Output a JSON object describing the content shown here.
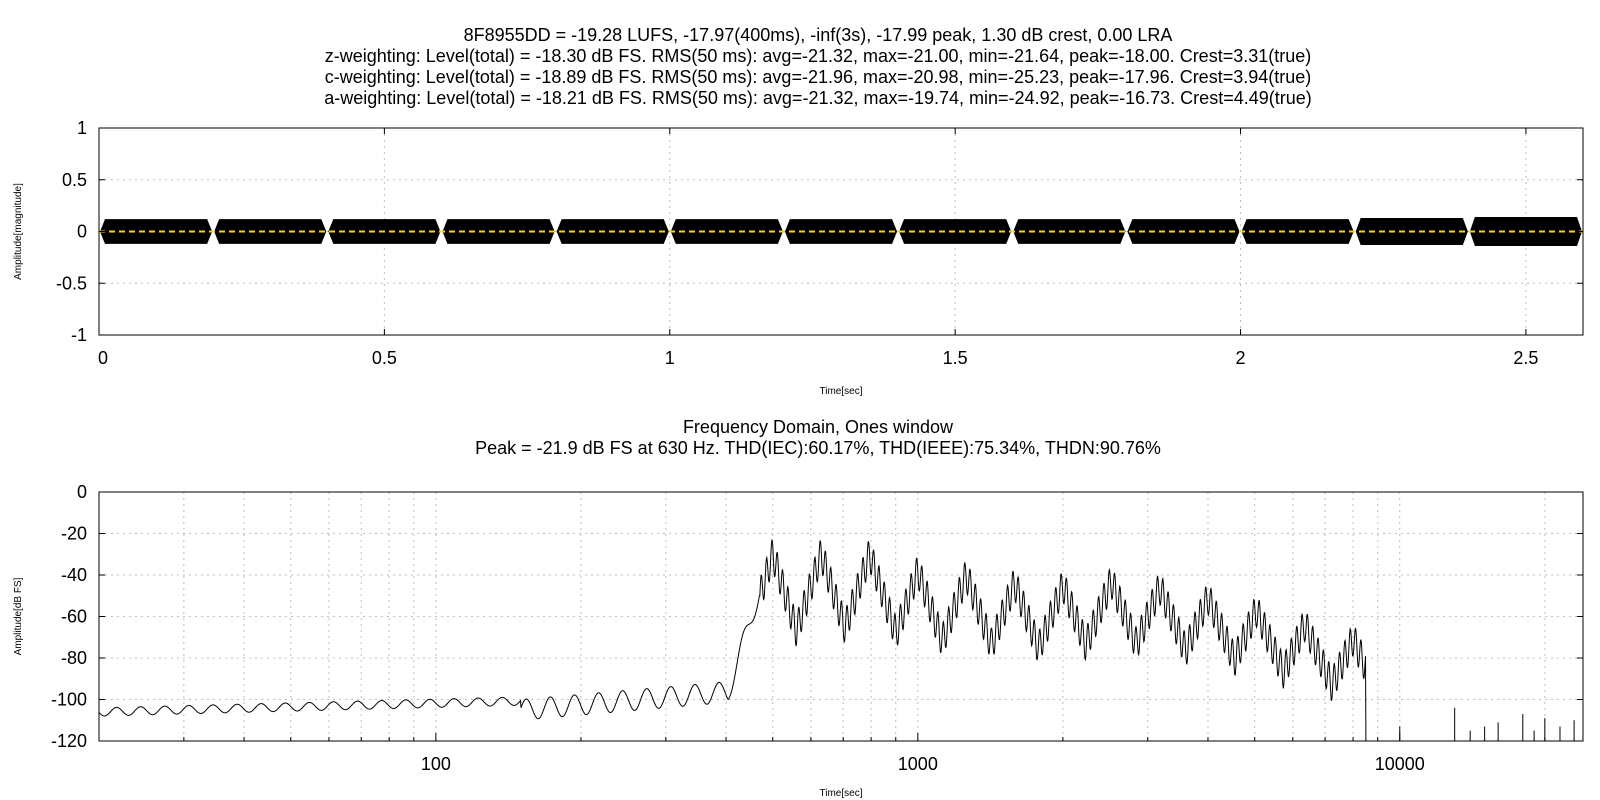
{
  "header": {
    "line1": "8F8955DD = -19.28 LUFS, -17.97(400ms), -inf(3s), -17.99 peak, 1.30 dB crest, 0.00 LRA",
    "line2": "z-weighting: Level(total) = -18.30 dB FS. RMS(50 ms): avg=-21.32, max=-21.00, min=-21.64, peak=-18.00. Crest=3.31(true)",
    "line3": "c-weighting: Level(total) = -18.89 dB FS. RMS(50 ms): avg=-21.96, max=-20.98, min=-25.23, peak=-17.96. Crest=3.94(true)",
    "line4": "a-weighting: Level(total) = -18.21 dB FS. RMS(50 ms): avg=-21.32, max=-19.74, min=-24.92, peak=-16.73. Crest=4.49(true)"
  },
  "chart_data": [
    {
      "type": "line",
      "ylabel": "Amplitude[magnitude]",
      "xlabel": "Time[sec]",
      "xlim": [
        0,
        2.6
      ],
      "ylim": [
        -1,
        1
      ],
      "xticks": [
        "0",
        "0.5",
        "1",
        "1.5",
        "2",
        "2.5"
      ],
      "xtick_values": [
        0,
        0.5,
        1,
        1.5,
        2,
        2.5
      ],
      "yticks": [
        "1",
        "0.5",
        "0",
        "-0.5",
        "-1"
      ],
      "ytick_values": [
        1,
        0.5,
        0,
        -0.5,
        -1
      ],
      "grid": true,
      "segment_duration": 0.2,
      "segment_starts": [
        0,
        0.2,
        0.4,
        0.6,
        0.8,
        1.0,
        1.2,
        1.4,
        1.6,
        1.8,
        2.0,
        2.2,
        2.4
      ],
      "segment_amplitudes": [
        0.12,
        0.12,
        0.12,
        0.12,
        0.12,
        0.12,
        0.12,
        0.12,
        0.12,
        0.12,
        0.12,
        0.13,
        0.14
      ],
      "zero_line_color": "#ffd700",
      "waveform_color": "#000000"
    },
    {
      "type": "line",
      "title": "Frequency Domain, Ones window",
      "subtitle": "Peak = -21.9 dB FS at 630 Hz. THD(IEC):60.17%, THD(IEEE):75.34%, THDN:90.76%",
      "ylabel": "Amplitude[dB FS]",
      "xlabel": "Time[sec]",
      "xscale": "log",
      "xlim": [
        20,
        24000
      ],
      "ylim": [
        -120,
        0
      ],
      "xticks": [
        "100",
        "1000",
        "10000"
      ],
      "xtick_values": [
        100,
        1000,
        10000
      ],
      "yticks": [
        "0",
        "-20",
        "-40",
        "-60",
        "-80",
        "-100",
        "-120"
      ],
      "ytick_values": [
        0,
        -20,
        -40,
        -60,
        -80,
        -100,
        -120
      ],
      "grid": true,
      "harmonic_peaks": [
        {
          "freq": 500,
          "db": -22
        },
        {
          "freq": 630,
          "db": -21.9
        },
        {
          "freq": 794,
          "db": -22
        },
        {
          "freq": 1000,
          "db": -30
        },
        {
          "freq": 1260,
          "db": -32
        },
        {
          "freq": 1587,
          "db": -36
        },
        {
          "freq": 2000,
          "db": -37
        },
        {
          "freq": 2520,
          "db": -35
        },
        {
          "freq": 3175,
          "db": -38
        },
        {
          "freq": 4000,
          "db": -43
        },
        {
          "freq": 5040,
          "db": -49
        },
        {
          "freq": 6350,
          "db": -56
        },
        {
          "freq": 8000,
          "db": -63
        }
      ],
      "sparse_spikes": [
        {
          "freq": 10000,
          "db": -113
        },
        {
          "freq": 13000,
          "db": -104
        },
        {
          "freq": 14000,
          "db": -115
        },
        {
          "freq": 15000,
          "db": -113
        },
        {
          "freq": 16000,
          "db": -111
        },
        {
          "freq": 18000,
          "db": -107
        },
        {
          "freq": 19000,
          "db": -115
        },
        {
          "freq": 20000,
          "db": -109
        },
        {
          "freq": 21500,
          "db": -113
        },
        {
          "freq": 23000,
          "db": -110
        }
      ],
      "line_color": "#000000"
    }
  ]
}
